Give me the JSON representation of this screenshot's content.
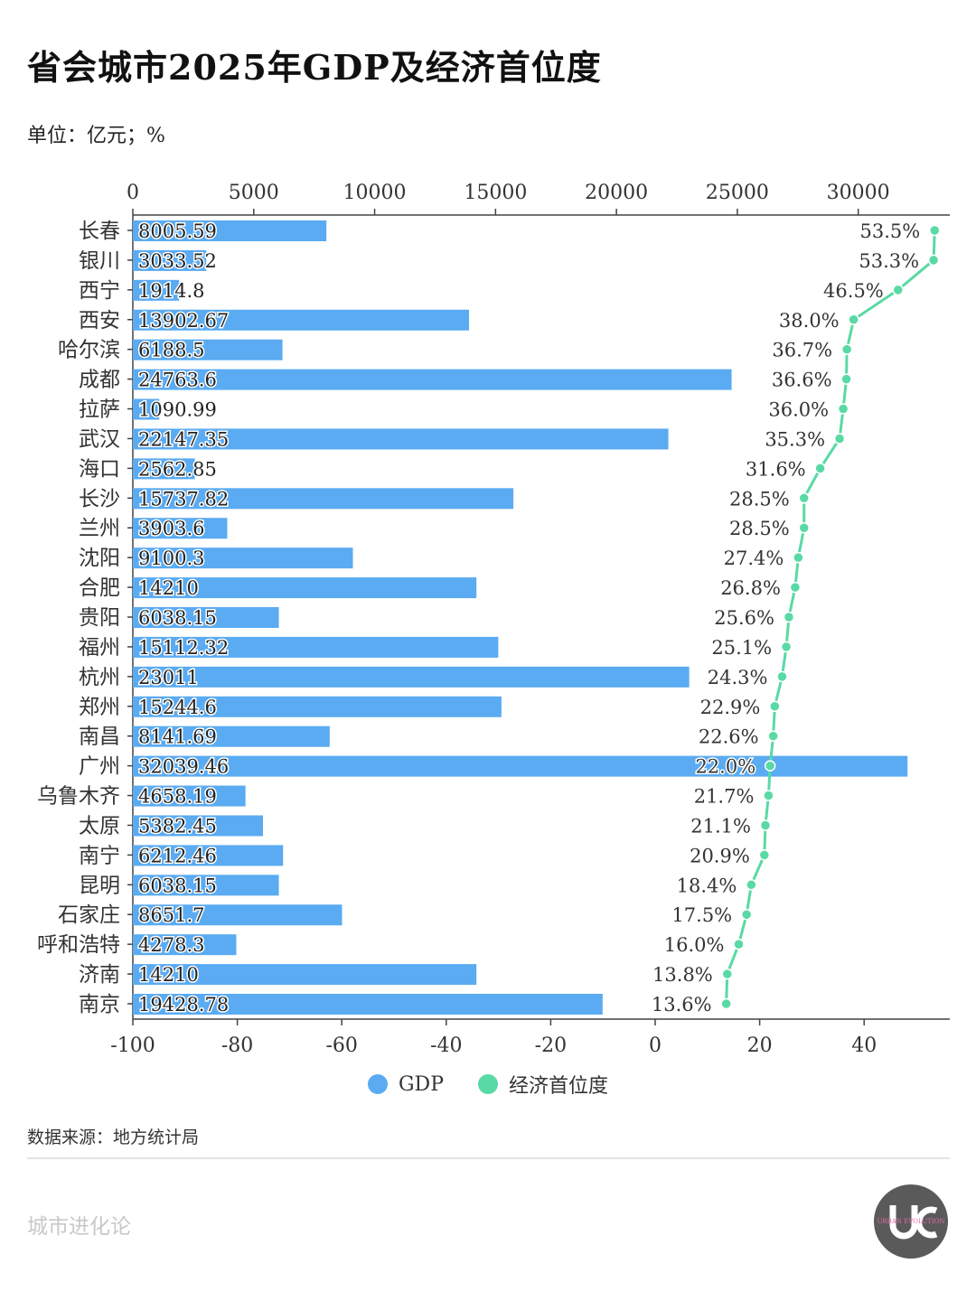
{
  "header": {
    "title": "省会城市2025年GDP及经济首位度",
    "unit": "单位：亿元；%"
  },
  "footer": {
    "source": "数据来源：地方统计局",
    "brand": "城市进化论",
    "logo_text": "URBAN EVOLUTION"
  },
  "colors": {
    "gdp": "#5aabf2",
    "primacy": "#59d9a4",
    "axis": "#444444",
    "label": "#333333"
  },
  "chart_data": {
    "type": "bar",
    "categories": [
      "长春",
      "银川",
      "西宁",
      "西安",
      "哈尔滨",
      "成都",
      "拉萨",
      "武汉",
      "海口",
      "长沙",
      "兰州",
      "沈阳",
      "合肥",
      "贵阳",
      "福州",
      "杭州",
      "郑州",
      "南昌",
      "广州",
      "乌鲁木齐",
      "太原",
      "南宁",
      "昆明",
      "石家庄",
      "呼和浩特",
      "济南",
      "南京"
    ],
    "series": [
      {
        "name": "GDP",
        "type": "bar",
        "axis": "top",
        "values": [
          8005.59,
          3033.52,
          1914.8,
          13902.67,
          6188.5,
          24763.6,
          1090.99,
          22147.35,
          2562.85,
          15737.82,
          3903.6,
          9100.3,
          14210,
          6038.15,
          15112.32,
          23011,
          15244.6,
          8141.69,
          32039.46,
          4658.19,
          5382.45,
          6212.46,
          6038.15,
          8651.7,
          4278.3,
          14210,
          19428.78
        ],
        "labels": [
          "8005.59",
          "3033.52",
          "1914.8",
          "13902.67",
          "6188.5",
          "24763.6",
          "1090.99",
          "22147.35",
          "2562.85",
          "15737.82",
          "3903.6",
          "9100.3",
          "14210",
          "6038.15",
          "15112.32",
          "23011",
          "15244.6",
          "8141.69",
          "32039.46",
          "4658.19",
          "5382.45",
          "6212.46",
          "6038.15",
          "8651.7",
          "4278.3",
          "14210",
          "19428.78"
        ]
      },
      {
        "name": "经济首位度",
        "type": "line",
        "axis": "bottom",
        "values": [
          53.5,
          53.3,
          46.5,
          38.0,
          36.7,
          36.6,
          36.0,
          35.3,
          31.6,
          28.5,
          28.5,
          27.4,
          26.8,
          25.6,
          25.1,
          24.3,
          22.9,
          22.6,
          22.0,
          21.7,
          21.1,
          20.9,
          18.4,
          17.5,
          16.0,
          13.8,
          13.6
        ],
        "labels": [
          "53.5%",
          "53.3%",
          "46.5%",
          "38.0%",
          "36.7%",
          "36.6%",
          "36.0%",
          "35.3%",
          "31.6%",
          "28.5%",
          "28.5%",
          "27.4%",
          "26.8%",
          "25.6%",
          "25.1%",
          "24.3%",
          "22.9%",
          "22.6%",
          "22.0%",
          "21.7%",
          "21.1%",
          "20.9%",
          "18.4%",
          "17.5%",
          "16.0%",
          "13.8%",
          "13.6%"
        ]
      }
    ],
    "x_top": {
      "range": [
        0,
        33787
      ],
      "ticks": [
        0,
        5000,
        10000,
        15000,
        20000,
        25000,
        30000
      ],
      "tick_labels": [
        "0",
        "5000",
        "10000",
        "15000",
        "20000",
        "25000",
        "30000"
      ]
    },
    "x_bottom": {
      "range": [
        -100,
        56.4
      ],
      "ticks": [
        -100,
        -80,
        -60,
        -40,
        -20,
        0,
        20,
        40
      ],
      "tick_labels": [
        "-100",
        "-80",
        "-60",
        "-40",
        "-20",
        "0",
        "20",
        "40"
      ]
    },
    "legend": {
      "position": "bottom",
      "items": [
        "GDP",
        "经济首位度"
      ]
    },
    "grid": false
  }
}
